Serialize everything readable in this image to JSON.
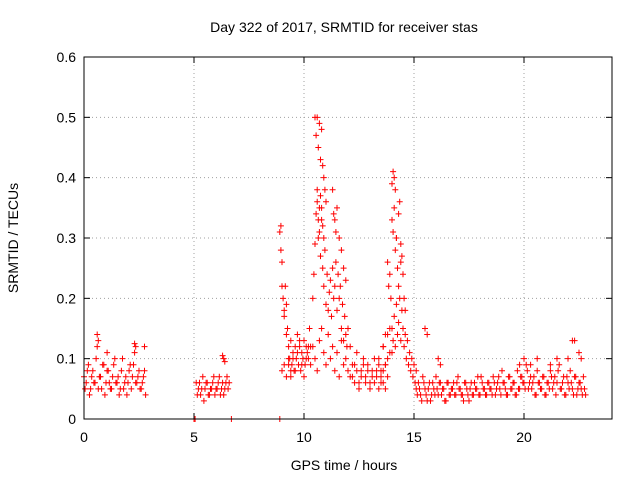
{
  "chart_data": {
    "type": "scatter",
    "title": "Day 322 of 2017, SRMTID for receiver stas",
    "xlabel": "GPS time / hours",
    "ylabel": "SRMTID / TECUs",
    "xlim": [
      0,
      24
    ],
    "ylim": [
      0,
      0.6
    ],
    "x_ticks": [
      0,
      5,
      10,
      15,
      20
    ],
    "x_tick_labels": [
      "0",
      "5",
      "10",
      "15",
      "20"
    ],
    "y_ticks": [
      0,
      0.1,
      0.2,
      0.3,
      0.4,
      0.5,
      0.6
    ],
    "y_tick_labels": [
      "0",
      "0.1",
      "0.2",
      "0.3",
      "0.4",
      "0.5",
      "0.6"
    ],
    "grid": true,
    "marker": "+",
    "color": "#ff0000",
    "series": [
      {
        "name": "SRMTID",
        "x": [
          0.0,
          0.1,
          0.2,
          0.3,
          0.4,
          0.5,
          0.6,
          0.7,
          0.8,
          0.9,
          1.0,
          1.1,
          1.2,
          1.3,
          1.4,
          1.5,
          1.6,
          1.7,
          1.8,
          1.9,
          2.0,
          2.1,
          2.2,
          2.3,
          2.4,
          2.5,
          2.6,
          2.7,
          2.8,
          0.05,
          0.15,
          0.25,
          0.35,
          0.45,
          0.55,
          0.65,
          0.75,
          0.85,
          0.95,
          1.05,
          1.15,
          1.25,
          1.35,
          1.45,
          1.55,
          1.65,
          1.75,
          1.85,
          1.95,
          2.05,
          2.15,
          2.25,
          2.35,
          2.45,
          2.55,
          2.65,
          2.75,
          0.6,
          0.65,
          1.05,
          2.3,
          2.35,
          2.75,
          5.0,
          5.05,
          6.7,
          8.9,
          5.1,
          5.2,
          5.3,
          5.4,
          5.5,
          5.6,
          5.7,
          5.8,
          5.9,
          6.0,
          6.1,
          6.2,
          6.3,
          6.4,
          6.5,
          6.6,
          5.15,
          5.25,
          5.35,
          5.45,
          5.55,
          5.65,
          5.75,
          5.85,
          5.95,
          6.05,
          6.15,
          6.25,
          6.35,
          6.45,
          6.55,
          6.3,
          6.35,
          6.4,
          8.9,
          8.95,
          9.0,
          9.05,
          9.1,
          9.15,
          9.2,
          9.25,
          9.3,
          9.35,
          9.4,
          9.45,
          9.5,
          9.55,
          9.6,
          9.65,
          9.7,
          9.75,
          9.8,
          9.85,
          9.9,
          9.95,
          10.0,
          10.05,
          10.1,
          10.15,
          10.2,
          10.25,
          10.3,
          8.95,
          9.0,
          9.1,
          9.2,
          9.3,
          9.4,
          9.5,
          9.6,
          9.7,
          9.8,
          9.9,
          10.0,
          10.1,
          10.2,
          10.3,
          9.0,
          9.1,
          9.2,
          9.3,
          9.4,
          10.4,
          10.45,
          10.5,
          10.55,
          10.6,
          10.65,
          10.7,
          10.75,
          10.8,
          10.85,
          10.9,
          10.95,
          11.0,
          11.05,
          11.1,
          11.15,
          11.2,
          11.25,
          11.3,
          11.35,
          11.4,
          11.45,
          11.5,
          11.55,
          11.6,
          11.65,
          11.7,
          11.75,
          11.8,
          11.85,
          11.9,
          11.95,
          12.0,
          10.5,
          10.55,
          10.6,
          10.65,
          10.7,
          10.75,
          10.8,
          10.85,
          10.9,
          10.95,
          11.0,
          10.6,
          10.65,
          10.7,
          10.75,
          10.8,
          10.85,
          10.9,
          11.3,
          11.35,
          11.4,
          11.45,
          11.5,
          11.6,
          11.7,
          11.8,
          11.9,
          10.4,
          10.5,
          10.6,
          10.7,
          10.8,
          10.9,
          11.0,
          11.1,
          11.2,
          11.3,
          11.4,
          11.5,
          11.6,
          11.7,
          11.8,
          11.9,
          12.0,
          12.1,
          12.2,
          12.3,
          12.4,
          12.5,
          12.6,
          12.7,
          12.8,
          12.9,
          13.0,
          13.1,
          13.2,
          13.3,
          13.4,
          13.5,
          13.6,
          13.7,
          12.1,
          12.2,
          12.3,
          12.4,
          12.5,
          12.6,
          12.7,
          12.8,
          12.9,
          13.0,
          13.1,
          13.2,
          13.3,
          13.4,
          13.5,
          13.6,
          13.7,
          13.8,
          13.4,
          13.5,
          13.6,
          13.7,
          13.8,
          13.9,
          14.0,
          14.05,
          14.1,
          14.15,
          14.2,
          14.25,
          14.3,
          14.35,
          14.4,
          14.45,
          14.5,
          14.55,
          14.6,
          14.65,
          14.7,
          14.75,
          14.8,
          14.85,
          14.9,
          14.95,
          15.0,
          15.05,
          15.1,
          13.8,
          13.85,
          13.9,
          13.95,
          14.0,
          14.05,
          14.1,
          14.15,
          14.2,
          14.25,
          14.3,
          14.35,
          14.4,
          14.45,
          14.5,
          14.55,
          14.6,
          14.0,
          14.05,
          14.1,
          14.15,
          14.2,
          14.3,
          14.4,
          13.6,
          13.7,
          13.8,
          13.9,
          14.0,
          15.1,
          15.2,
          15.3,
          15.4,
          15.5,
          15.6,
          15.7,
          15.8,
          15.9,
          16.0,
          16.1,
          16.2,
          16.3,
          16.4,
          16.5,
          16.6,
          16.7,
          16.8,
          16.9,
          17.0,
          17.1,
          17.2,
          17.3,
          17.4,
          17.5,
          17.6,
          17.7,
          17.8,
          17.9,
          18.0,
          18.1,
          18.2,
          18.3,
          18.4,
          18.5,
          18.6,
          18.7,
          18.8,
          18.9,
          19.0,
          19.1,
          19.2,
          19.3,
          19.4,
          19.5,
          19.6,
          19.7,
          19.8,
          19.9,
          20.0,
          20.1,
          20.2,
          20.3,
          20.4,
          20.5,
          20.6,
          20.7,
          20.8,
          20.9,
          21.0,
          21.1,
          21.2,
          21.3,
          21.4,
          21.5,
          21.6,
          21.7,
          21.8,
          21.9,
          22.0,
          22.1,
          22.2,
          22.3,
          22.4,
          22.5,
          22.6,
          22.7,
          22.8,
          15.15,
          15.25,
          15.35,
          15.45,
          15.55,
          15.65,
          15.75,
          15.85,
          15.95,
          16.05,
          16.15,
          16.25,
          16.35,
          16.45,
          16.55,
          16.65,
          16.75,
          16.85,
          16.95,
          17.05,
          17.15,
          17.25,
          17.35,
          17.45,
          17.55,
          17.65,
          17.75,
          17.85,
          17.95,
          18.05,
          18.15,
          18.25,
          18.35,
          18.45,
          18.55,
          18.65,
          18.75,
          18.85,
          18.95,
          19.05,
          19.15,
          19.25,
          19.35,
          19.45,
          19.55,
          19.65,
          19.75,
          19.85,
          19.95,
          20.05,
          20.15,
          20.25,
          20.35,
          20.45,
          20.55,
          20.65,
          20.75,
          20.85,
          20.95,
          21.05,
          21.15,
          21.25,
          21.35,
          21.45,
          21.55,
          21.65,
          21.75,
          21.85,
          21.95,
          22.05,
          22.15,
          22.25,
          22.35,
          22.45,
          22.55,
          22.65,
          22.75,
          15.5,
          15.6,
          16.1,
          16.2,
          19.8,
          20.0,
          20.3,
          20.6,
          21.2,
          21.5,
          22.0,
          22.2,
          22.3,
          22.5,
          22.6
        ],
        "y": [
          0.07,
          0.06,
          0.09,
          0.05,
          0.08,
          0.06,
          0.12,
          0.07,
          0.05,
          0.09,
          0.06,
          0.08,
          0.05,
          0.07,
          0.1,
          0.06,
          0.04,
          0.08,
          0.05,
          0.07,
          0.06,
          0.09,
          0.07,
          0.11,
          0.06,
          0.08,
          0.05,
          0.07,
          0.04,
          0.05,
          0.08,
          0.04,
          0.07,
          0.06,
          0.1,
          0.05,
          0.07,
          0.09,
          0.04,
          0.08,
          0.06,
          0.05,
          0.09,
          0.06,
          0.07,
          0.05,
          0.1,
          0.06,
          0.04,
          0.08,
          0.05,
          0.09,
          0.06,
          0.07,
          0.05,
          0.06,
          0.08,
          0.14,
          0.13,
          0.11,
          0.125,
          0.12,
          0.12,
          0.0,
          0.0,
          0.0,
          0.0,
          0.06,
          0.05,
          0.04,
          0.07,
          0.05,
          0.06,
          0.04,
          0.05,
          0.07,
          0.05,
          0.06,
          0.04,
          0.06,
          0.05,
          0.07,
          0.06,
          0.04,
          0.06,
          0.05,
          0.03,
          0.06,
          0.04,
          0.05,
          0.06,
          0.04,
          0.05,
          0.07,
          0.05,
          0.04,
          0.06,
          0.05,
          0.105,
          0.1,
          0.095,
          0.31,
          0.32,
          0.26,
          0.2,
          0.17,
          0.22,
          0.19,
          0.15,
          0.12,
          0.1,
          0.13,
          0.09,
          0.11,
          0.08,
          0.12,
          0.1,
          0.14,
          0.09,
          0.12,
          0.08,
          0.11,
          0.1,
          0.13,
          0.09,
          0.12,
          0.11,
          0.1,
          0.15,
          0.12,
          0.28,
          0.22,
          0.18,
          0.14,
          0.09,
          0.07,
          0.1,
          0.08,
          0.11,
          0.13,
          0.09,
          0.07,
          0.1,
          0.12,
          0.09,
          0.08,
          0.09,
          0.07,
          0.1,
          0.08,
          0.2,
          0.24,
          0.29,
          0.34,
          0.38,
          0.3,
          0.35,
          0.27,
          0.33,
          0.25,
          0.22,
          0.28,
          0.19,
          0.24,
          0.18,
          0.21,
          0.23,
          0.17,
          0.25,
          0.2,
          0.22,
          0.26,
          0.18,
          0.24,
          0.2,
          0.22,
          0.15,
          0.19,
          0.13,
          0.17,
          0.14,
          0.12,
          0.15,
          0.5,
          0.47,
          0.5,
          0.45,
          0.49,
          0.43,
          0.48,
          0.42,
          0.4,
          0.38,
          0.36,
          0.36,
          0.33,
          0.31,
          0.37,
          0.35,
          0.32,
          0.3,
          0.38,
          0.34,
          0.33,
          0.31,
          0.35,
          0.3,
          0.28,
          0.25,
          0.23,
          0.12,
          0.1,
          0.08,
          0.13,
          0.15,
          0.11,
          0.09,
          0.14,
          0.1,
          0.12,
          0.08,
          0.11,
          0.07,
          0.13,
          0.09,
          0.1,
          0.08,
          0.12,
          0.07,
          0.09,
          0.11,
          0.06,
          0.08,
          0.1,
          0.07,
          0.09,
          0.06,
          0.08,
          0.1,
          0.07,
          0.09,
          0.06,
          0.08,
          0.05,
          0.07,
          0.09,
          0.06,
          0.08,
          0.05,
          0.07,
          0.09,
          0.06,
          0.08,
          0.05,
          0.07,
          0.06,
          0.08,
          0.05,
          0.07,
          0.06,
          0.09,
          0.07,
          0.1,
          0.08,
          0.12,
          0.09,
          0.14,
          0.11,
          0.15,
          0.13,
          0.17,
          0.12,
          0.19,
          0.14,
          0.16,
          0.2,
          0.13,
          0.18,
          0.15,
          0.12,
          0.14,
          0.1,
          0.13,
          0.09,
          0.11,
          0.08,
          0.1,
          0.07,
          0.09,
          0.06,
          0.08,
          0.26,
          0.22,
          0.24,
          0.2,
          0.39,
          0.41,
          0.4,
          0.38,
          0.3,
          0.25,
          0.34,
          0.36,
          0.29,
          0.27,
          0.24,
          0.2,
          0.18,
          0.33,
          0.31,
          0.35,
          0.28,
          0.3,
          0.22,
          0.26,
          0.12,
          0.14,
          0.1,
          0.15,
          0.11,
          0.05,
          0.06,
          0.04,
          0.07,
          0.05,
          0.03,
          0.06,
          0.04,
          0.05,
          0.07,
          0.04,
          0.06,
          0.05,
          0.03,
          0.06,
          0.04,
          0.05,
          0.06,
          0.04,
          0.07,
          0.05,
          0.04,
          0.06,
          0.05,
          0.03,
          0.06,
          0.04,
          0.05,
          0.07,
          0.04,
          0.06,
          0.05,
          0.04,
          0.06,
          0.05,
          0.07,
          0.04,
          0.06,
          0.05,
          0.08,
          0.06,
          0.04,
          0.07,
          0.05,
          0.06,
          0.04,
          0.08,
          0.05,
          0.07,
          0.06,
          0.09,
          0.05,
          0.07,
          0.06,
          0.04,
          0.08,
          0.06,
          0.05,
          0.07,
          0.04,
          0.06,
          0.08,
          0.05,
          0.07,
          0.06,
          0.09,
          0.05,
          0.07,
          0.04,
          0.06,
          0.08,
          0.05,
          0.07,
          0.04,
          0.06,
          0.05,
          0.07,
          0.04,
          0.04,
          0.05,
          0.03,
          0.06,
          0.04,
          0.05,
          0.03,
          0.06,
          0.04,
          0.05,
          0.06,
          0.04,
          0.05,
          0.03,
          0.06,
          0.04,
          0.05,
          0.04,
          0.06,
          0.05,
          0.04,
          0.03,
          0.06,
          0.04,
          0.05,
          0.04,
          0.06,
          0.05,
          0.04,
          0.07,
          0.05,
          0.04,
          0.06,
          0.05,
          0.04,
          0.06,
          0.05,
          0.07,
          0.04,
          0.06,
          0.05,
          0.04,
          0.07,
          0.05,
          0.06,
          0.04,
          0.05,
          0.07,
          0.06,
          0.05,
          0.08,
          0.06,
          0.05,
          0.07,
          0.04,
          0.06,
          0.05,
          0.07,
          0.04,
          0.06,
          0.05,
          0.07,
          0.06,
          0.04,
          0.08,
          0.05,
          0.06,
          0.04,
          0.07,
          0.05,
          0.06,
          0.04,
          0.07,
          0.05,
          0.06,
          0.04,
          0.05,
          0.15,
          0.14,
          0.1,
          0.09,
          0.09,
          0.1,
          0.09,
          0.1,
          0.09,
          0.1,
          0.1,
          0.13,
          0.13,
          0.11,
          0.1
        ]
      }
    ]
  }
}
